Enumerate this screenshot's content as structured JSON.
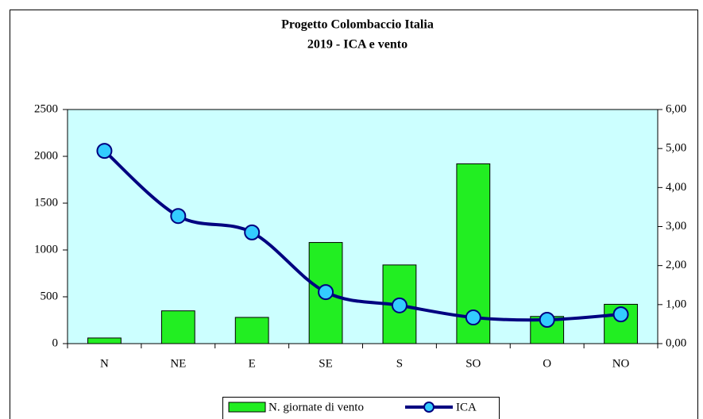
{
  "chart_data": {
    "type": "bar-line",
    "title": "Progetto Colombaccio Italia",
    "subtitle": "2019 - ICA e vento",
    "categories": [
      "N",
      "NE",
      "E",
      "SE",
      "S",
      "SO",
      "O",
      "NO"
    ],
    "series": [
      {
        "name": "N. giornate di vento",
        "type": "bar",
        "color": "#22ee22",
        "values": [
          60,
          350,
          280,
          1080,
          840,
          1920,
          290,
          420
        ]
      },
      {
        "name": "ICA",
        "type": "line",
        "axis": "y2",
        "color": "#000080",
        "marker_color": "#33ccff",
        "values": [
          4.94,
          3.27,
          2.85,
          1.32,
          0.98,
          0.67,
          0.61,
          0.75
        ]
      }
    ],
    "ylim": [
      0,
      2500
    ],
    "yticks": [
      0,
      500,
      1000,
      1500,
      2000,
      2500
    ],
    "y2lim": [
      0,
      6
    ],
    "y2ticks": [
      {
        "value": 0,
        "label": "0,00"
      },
      {
        "value": 1,
        "label": "1,00"
      },
      {
        "value": 2,
        "label": "2,00"
      },
      {
        "value": 3,
        "label": "3,00"
      },
      {
        "value": 4,
        "label": "4,00"
      },
      {
        "value": 5,
        "label": "5,00"
      },
      {
        "value": 6,
        "label": "6,00"
      }
    ],
    "plot_background": "#ccffff",
    "legend": "bottom"
  }
}
